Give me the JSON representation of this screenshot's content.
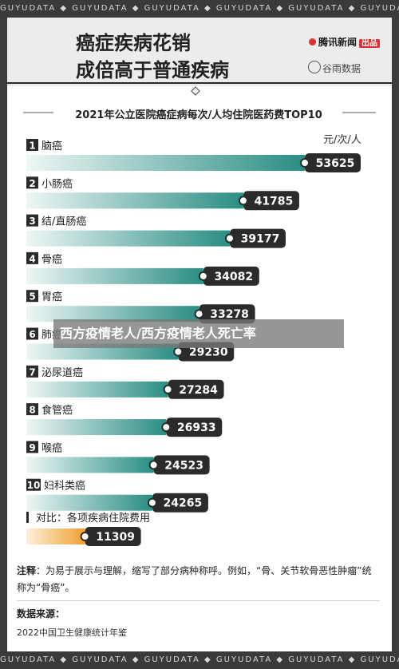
{
  "watermark": "GUYUDATA",
  "header": {
    "title_line1": "癌症疾病花销",
    "title_line2": "成倍高于普通疾病",
    "brand_tencent": "腾讯新闻",
    "brand_badge": "出品",
    "brand_guyu": "谷雨数据"
  },
  "overlay_text": "西方疫情老人/西方疫情老人死亡率",
  "chart_data": {
    "type": "bar",
    "title": "2021年公立医院癌症病每次/人均住院医药费TOP10",
    "unit": "元/次/人",
    "ranks": [
      "1",
      "2",
      "3",
      "4",
      "5",
      "6",
      "7",
      "8",
      "9",
      "10"
    ],
    "categories": [
      "脑癌",
      "小肠癌",
      "结/直肠癌",
      "骨癌",
      "胃癌",
      "肺癌",
      "泌尿道癌",
      "食管癌",
      "喉癌",
      "妇科类癌"
    ],
    "values": [
      53625,
      41785,
      39177,
      34082,
      33278,
      29230,
      27284,
      26933,
      24523,
      24265
    ],
    "value_labels": [
      "53625",
      "41785",
      "39177",
      "34082",
      "33278",
      "29230",
      "27284",
      "26933",
      "24523",
      "24265"
    ],
    "comparison": {
      "label": "对比：各项疾病住院费用",
      "value": 11309,
      "value_label": "11309"
    },
    "colors": {
      "bar": "#2a8d84",
      "bar_light": "#e9f5f3",
      "compare": "#f0a030",
      "compare_light": "#fdf0dc",
      "pill": "#2b2b2b"
    }
  },
  "note": {
    "label": "注释",
    "text": "：为易于展示与理解，缩写了部分病种称呼。例如，“骨、关节软骨恶性肿瘤”统称为“骨癌”。"
  },
  "source": {
    "label": "数据来源：",
    "text": "2022中国卫生健康统计年鉴"
  }
}
